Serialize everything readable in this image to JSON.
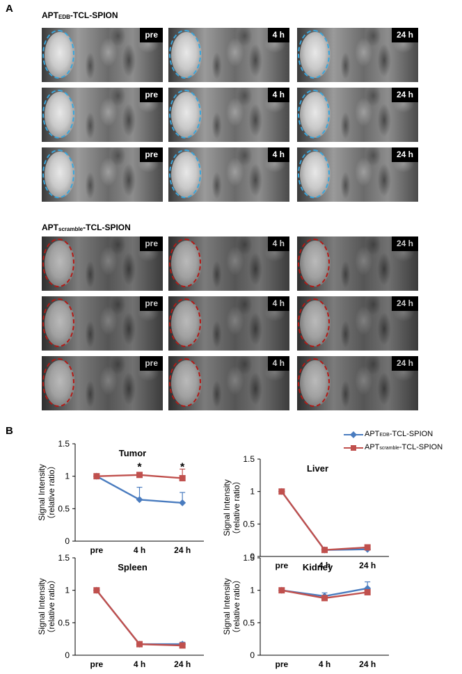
{
  "panel_a": {
    "letter": "A",
    "groups": [
      {
        "title_main": "APT",
        "title_sub": "EDB",
        "title_rest": "-TCL-SPION",
        "ring_color": "#3aa6dc",
        "time_labels": [
          "pre",
          "4 h",
          "24 h"
        ],
        "rows": 3
      },
      {
        "title_main": "APT",
        "title_sub": "scramble",
        "title_rest": "-TCL-SPION",
        "ring_color": "#e0201c",
        "time_labels": [
          "pre",
          "4 h",
          "24 h"
        ],
        "rows": 3
      }
    ]
  },
  "panel_b": {
    "letter": "B"
  },
  "legend": [
    {
      "main": "APT",
      "sub": "EDB",
      "rest": "-TCL-SPION",
      "color": "#4a7cbf",
      "marker": "diamond"
    },
    {
      "main": "APT",
      "sub": "scramble",
      "rest": "-TCL-SPION",
      "color": "#c0504d",
      "marker": "square"
    }
  ],
  "chart_data": [
    {
      "type": "line",
      "title": "Tumor",
      "ylabel": [
        "Signal Intensity",
        "（relative ratio）"
      ],
      "categories": [
        "pre",
        "4 h",
        "24 h"
      ],
      "ylim": [
        0,
        1.5
      ],
      "yticks": [
        "0",
        "0.5",
        "1",
        "1.5"
      ],
      "series": [
        {
          "name": "APTEDB-TCL-SPION",
          "values": [
            1.0,
            0.64,
            0.59
          ],
          "errors": [
            0,
            0.19,
            0.16
          ]
        },
        {
          "name": "APTscramble-TCL-SPION",
          "values": [
            1.0,
            1.02,
            0.97
          ],
          "errors": [
            0,
            0,
            0.14
          ]
        }
      ],
      "annotations": [
        {
          "category": "4 h",
          "text": "*"
        },
        {
          "category": "24 h",
          "text": "*"
        }
      ]
    },
    {
      "type": "line",
      "title": "Liver",
      "ylabel": [
        "Signal Intensity",
        "（relative ratio）"
      ],
      "categories": [
        "pre",
        "4 h",
        "24 h"
      ],
      "ylim": [
        0,
        1.5
      ],
      "yticks": [
        "0",
        "0.5",
        "1",
        "1.5"
      ],
      "series": [
        {
          "name": "APTEDB-TCL-SPION",
          "values": [
            1.0,
            0.1,
            0.11
          ],
          "errors": [
            0,
            0,
            0.04
          ]
        },
        {
          "name": "APTscramble-TCL-SPION",
          "values": [
            1.0,
            0.1,
            0.14
          ],
          "errors": [
            0,
            0,
            0.04
          ]
        }
      ],
      "annotations": []
    },
    {
      "type": "line",
      "title": "Spleen",
      "ylabel": [
        "Signal Intensity",
        "（relative ratio）"
      ],
      "categories": [
        "pre",
        "4 h",
        "24 h"
      ],
      "ylim": [
        0,
        1.5
      ],
      "yticks": [
        "0",
        "0.5",
        "1",
        "1.5"
      ],
      "series": [
        {
          "name": "APTEDB-TCL-SPION",
          "values": [
            1.0,
            0.17,
            0.17
          ],
          "errors": [
            0,
            0,
            0.03
          ]
        },
        {
          "name": "APTscramble-TCL-SPION",
          "values": [
            1.0,
            0.17,
            0.15
          ],
          "errors": [
            0,
            0,
            0.02
          ]
        }
      ],
      "annotations": []
    },
    {
      "type": "line",
      "title": "Kidney",
      "ylabel": [
        "Signal Intensity",
        "（relative ratio）"
      ],
      "categories": [
        "pre",
        "4 h",
        "24 h"
      ],
      "ylim": [
        0,
        1.5
      ],
      "yticks": [
        "0",
        "0.5",
        "1",
        "1.5"
      ],
      "series": [
        {
          "name": "APTEDB-TCL-SPION",
          "values": [
            1.0,
            0.91,
            1.03
          ],
          "errors": [
            0,
            0.05,
            0.1
          ]
        },
        {
          "name": "APTscramble-TCL-SPION",
          "values": [
            1.0,
            0.88,
            0.97
          ],
          "errors": [
            0,
            0.03,
            0.04
          ]
        }
      ],
      "annotations": []
    }
  ]
}
